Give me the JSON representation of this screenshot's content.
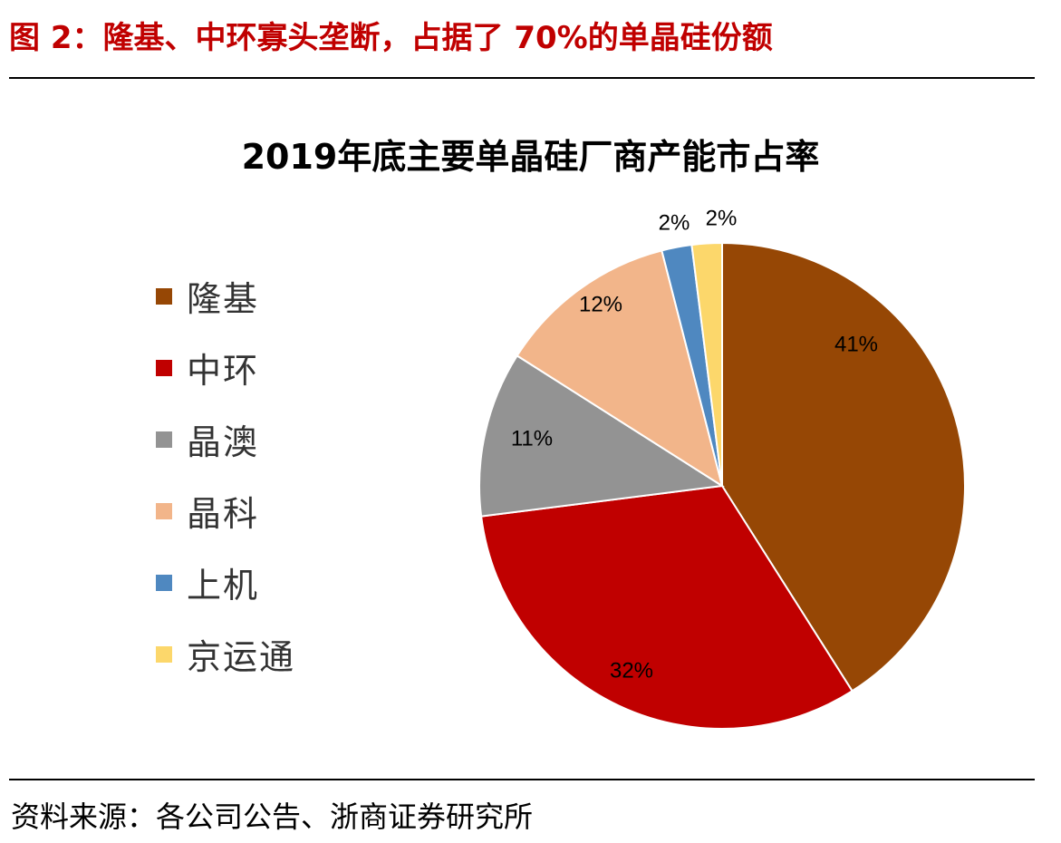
{
  "figure": {
    "title": "图 2：隆基、中环寡头垄断，占据了 70%的单晶硅份额",
    "source": "资料来源：各公司公告、浙商证券研究所"
  },
  "chart_data": {
    "type": "pie",
    "title": "2019年底主要单晶硅厂商产能市占率",
    "legend_position": "left",
    "labels": [
      "隆基",
      "中环",
      "晶澳",
      "晶科",
      "上机",
      "京运通"
    ],
    "values": [
      41,
      32,
      11,
      12,
      2,
      2
    ],
    "value_labels": [
      "41%",
      "32%",
      "11%",
      "12%",
      "2%",
      "2%"
    ],
    "colors": [
      "#964705",
      "#c00000",
      "#939393",
      "#f2b58a",
      "#4f88c0",
      "#fcd76b"
    ]
  }
}
